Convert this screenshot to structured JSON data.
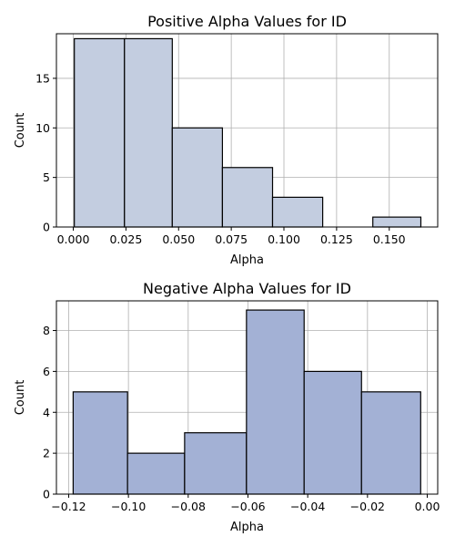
{
  "chart_data": [
    {
      "type": "bar",
      "title": "Positive Alpha Values for ID",
      "xlabel": "Alpha",
      "ylabel": "Count",
      "bin_edges": [
        0.0005,
        0.0243,
        0.047,
        0.0708,
        0.0946,
        0.1184,
        0.1422,
        0.165
      ],
      "values": [
        19,
        19,
        10,
        6,
        3,
        0,
        1
      ],
      "xlim": [
        -0.008,
        0.173
      ],
      "ylim": [
        0,
        19.5
      ],
      "xticks": [
        0.0,
        0.025,
        0.05,
        0.075,
        0.1,
        0.125,
        0.15
      ],
      "xtick_labels": [
        "0.000",
        "0.025",
        "0.050",
        "0.075",
        "0.100",
        "0.125",
        "0.150"
      ],
      "yticks": [
        0,
        5,
        10,
        15
      ],
      "ytick_labels": [
        "0",
        "5",
        "10",
        "15"
      ],
      "grid": true,
      "bar_color": "#c3cde0",
      "edge_color": "#000000"
    },
    {
      "type": "bar",
      "title": "Negative Alpha Values for ID",
      "xlabel": "Alpha",
      "ylabel": "Count",
      "bin_edges": [
        -0.1185,
        -0.1003,
        -0.0812,
        -0.0605,
        -0.0412,
        -0.022,
        -0.0022
      ],
      "values": [
        5,
        2,
        3,
        9,
        6,
        5
      ],
      "xlim": [
        -0.1241,
        0.0035
      ],
      "ylim": [
        0,
        9.45
      ],
      "xticks": [
        -0.12,
        -0.1,
        -0.08,
        -0.06,
        -0.04,
        -0.02,
        0.0
      ],
      "xtick_labels": [
        "−0.12",
        "−0.10",
        "−0.08",
        "−0.06",
        "−0.04",
        "−0.02",
        "0.00"
      ],
      "yticks": [
        0,
        2,
        4,
        6,
        8
      ],
      "ytick_labels": [
        "0",
        "2",
        "4",
        "6",
        "8"
      ],
      "grid": true,
      "bar_color": "#a3b1d5",
      "edge_color": "#000000"
    }
  ]
}
